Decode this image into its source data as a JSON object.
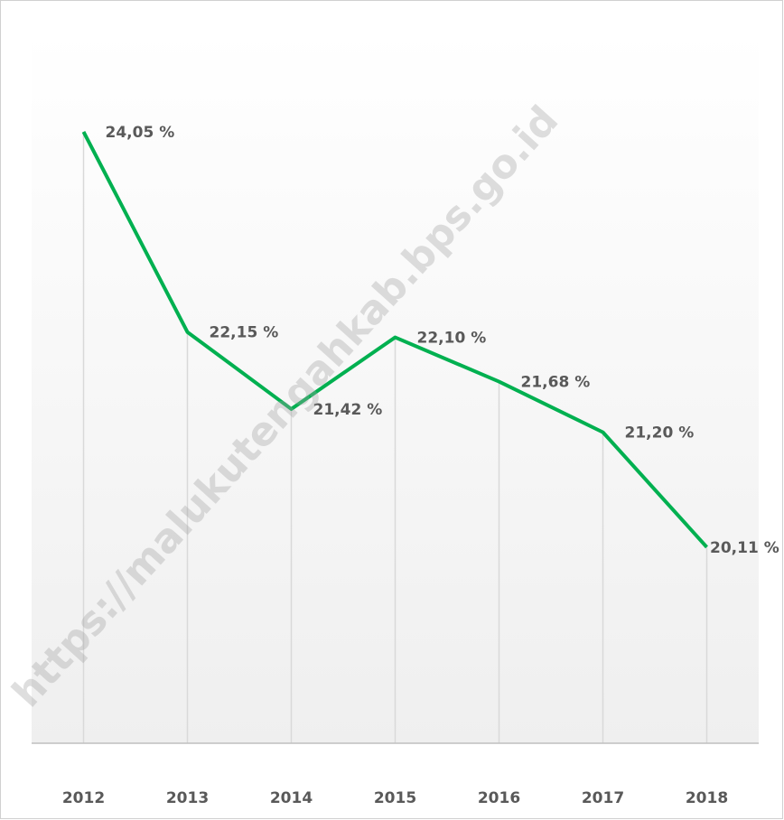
{
  "chart_data": {
    "type": "line",
    "categories": [
      "2012",
      "2013",
      "2014",
      "2015",
      "2016",
      "2017",
      "2018"
    ],
    "values": [
      24.05,
      22.15,
      21.42,
      22.1,
      21.68,
      21.2,
      20.11
    ],
    "value_labels": [
      "24,05 %",
      "22,15 %",
      "21,42 %",
      "22,10 %",
      "21,68 %",
      "21,20 %",
      "20,11 %"
    ],
    "color": "#00b050",
    "ylim": [
      18.25,
      25
    ],
    "watermark": "https://malukutengahkab.bps.go.id"
  }
}
